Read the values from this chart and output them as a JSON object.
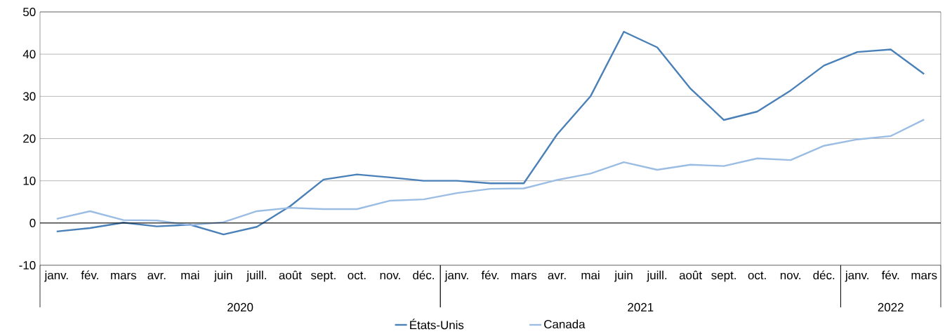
{
  "chart_data": {
    "type": "line",
    "categories": [
      "janv.",
      "fév.",
      "mars",
      "avr.",
      "mai",
      "juin",
      "juill.",
      "août",
      "sept.",
      "oct.",
      "nov.",
      "déc.",
      "janv.",
      "fév.",
      "mars",
      "avr.",
      "mai",
      "juin",
      "juill.",
      "août",
      "sept.",
      "oct.",
      "nov.",
      "déc.",
      "janv.",
      "fév.",
      "mars"
    ],
    "series": [
      {
        "name": "États-Unis",
        "color": "#4a80b8",
        "values": [
          -2.0,
          -1.2,
          0.1,
          -0.8,
          -0.4,
          -2.7,
          -0.9,
          4.0,
          10.3,
          11.5,
          10.8,
          10.0,
          10.0,
          9.4,
          9.4,
          21.0,
          30.0,
          45.3,
          41.6,
          31.8,
          24.4,
          26.4,
          31.4,
          37.3,
          40.5,
          41.1,
          35.3
        ]
      },
      {
        "name": "Canada",
        "color": "#9bbde3",
        "values": [
          1.0,
          2.8,
          0.7,
          0.6,
          -0.5,
          0.2,
          2.8,
          3.6,
          3.3,
          3.3,
          5.3,
          5.6,
          7.1,
          8.1,
          8.2,
          10.2,
          11.7,
          14.4,
          12.6,
          13.8,
          13.5,
          15.3,
          14.9,
          18.3,
          19.8,
          20.6,
          24.5
        ]
      }
    ],
    "annotations": [
      "2020",
      "2021",
      "2022"
    ],
    "ylim": [
      -10,
      50
    ],
    "yticks": [
      -10,
      0,
      10,
      20,
      30,
      40,
      50
    ],
    "grid": "y",
    "legend": "bottom",
    "marker": "none",
    "line_style": "solid"
  }
}
